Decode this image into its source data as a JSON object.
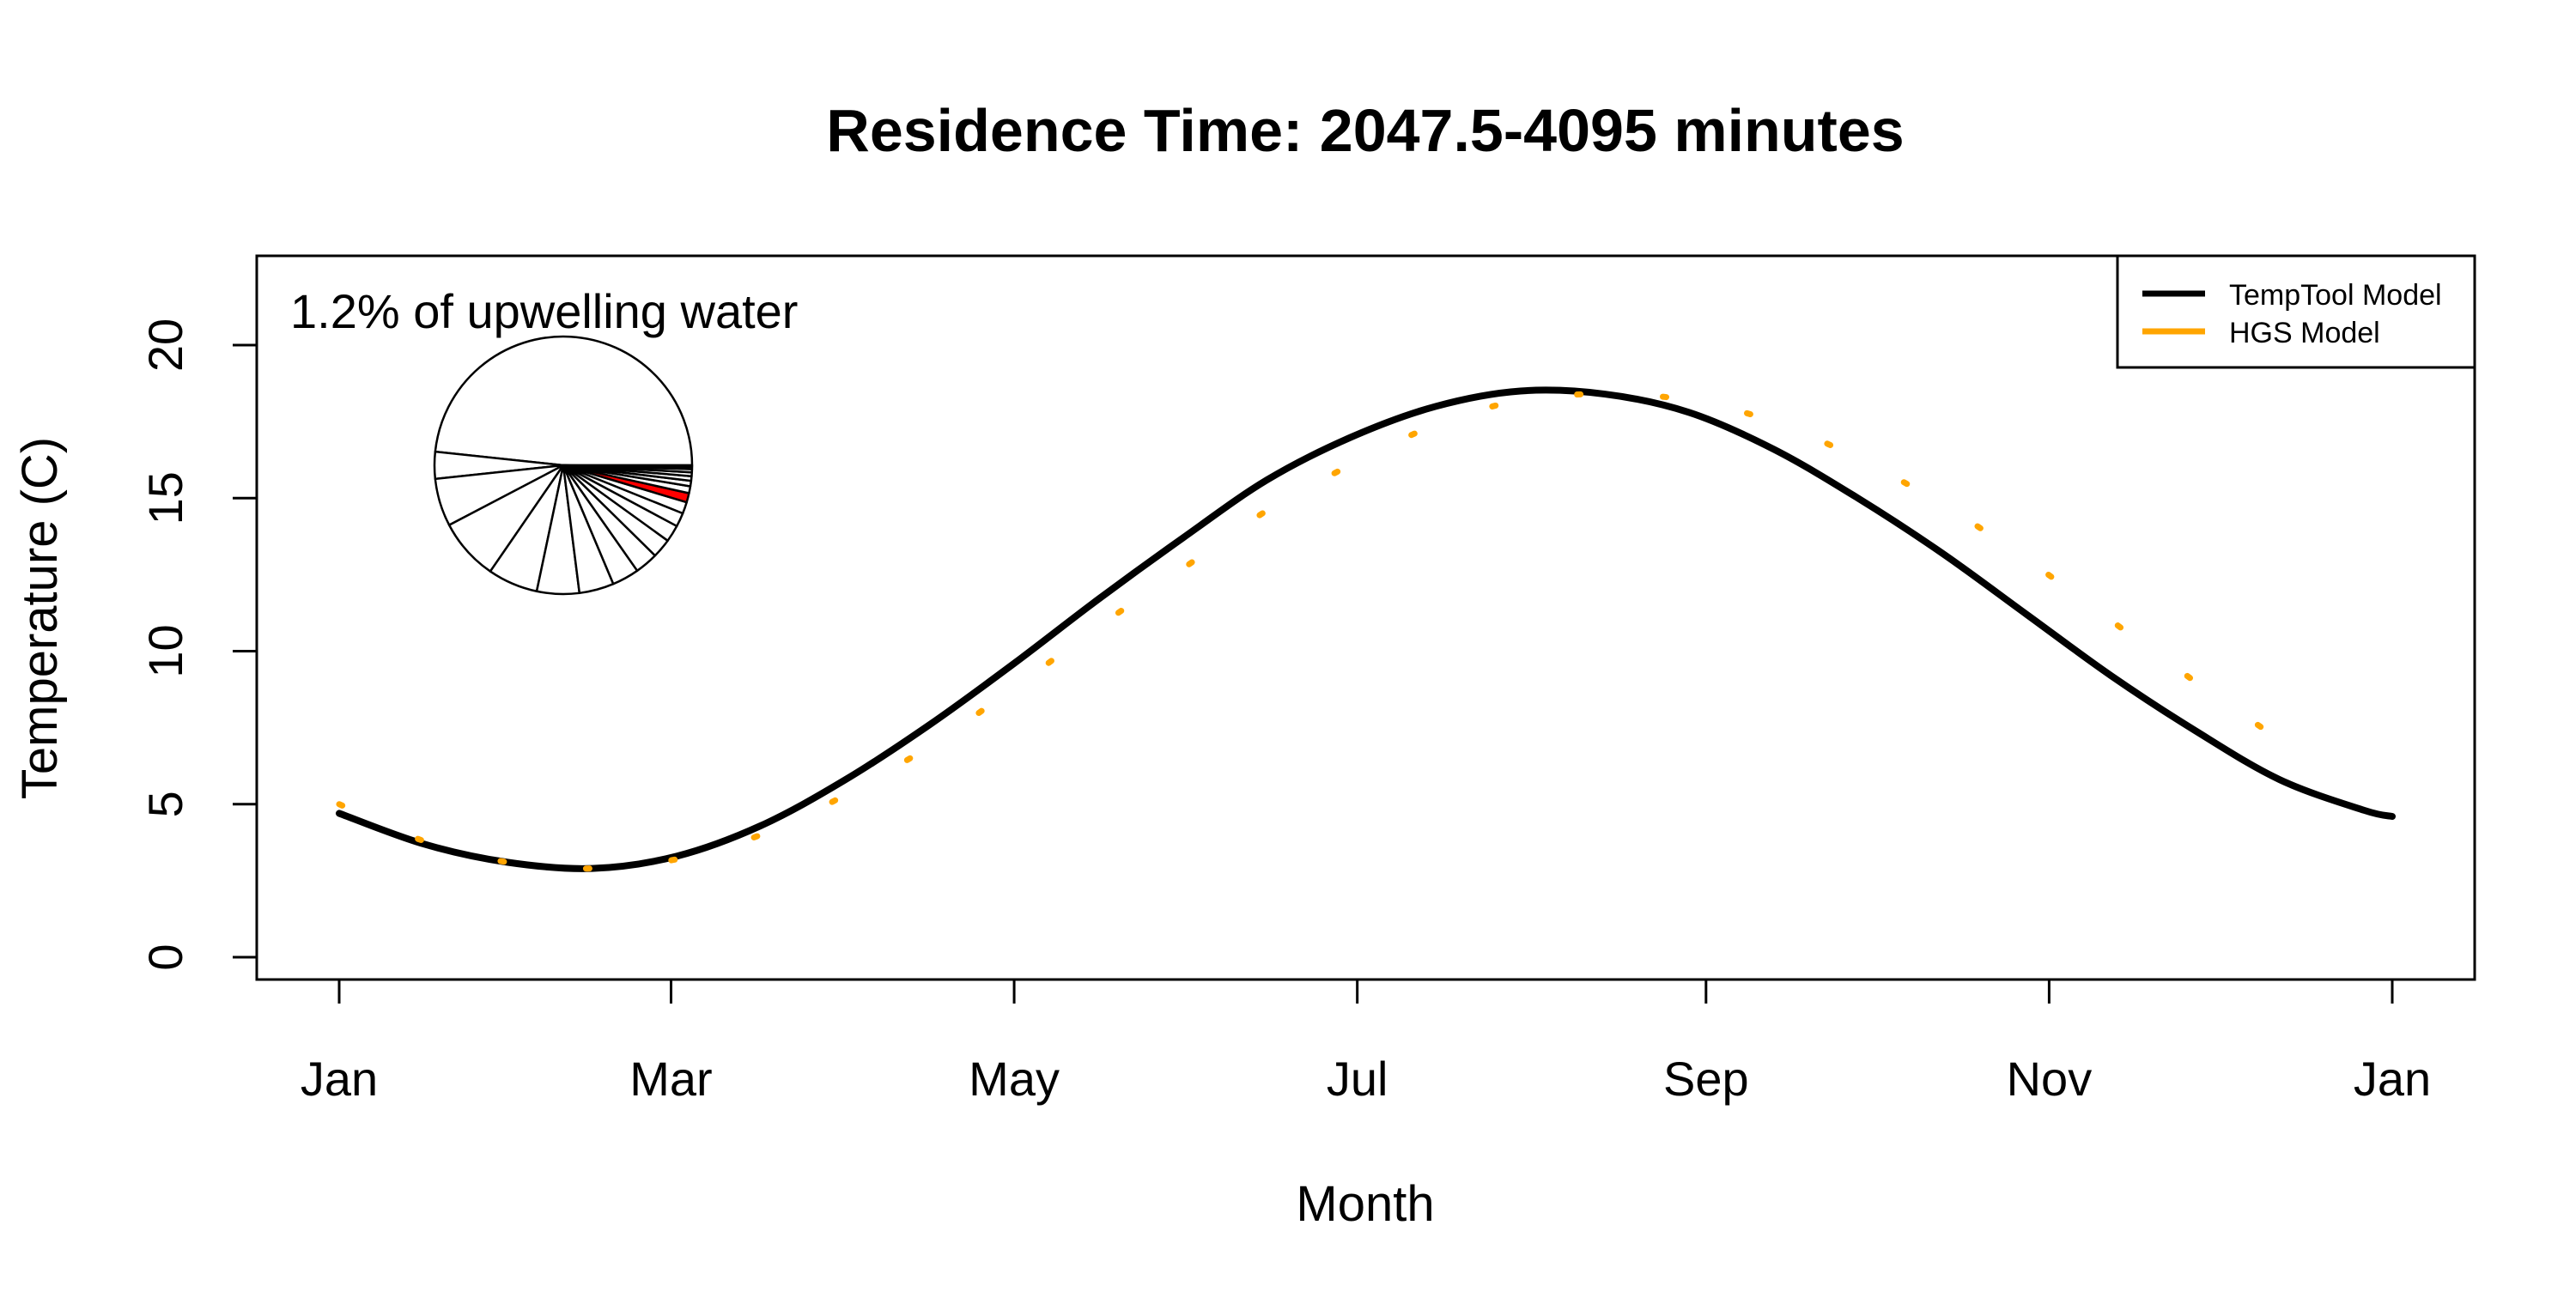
{
  "chart_data": {
    "type": "line",
    "title": "Residence Time: 2047.5-4095 minutes",
    "xlabel": "Month",
    "ylabel": "Temperature (C)",
    "x_ticks": [
      "Jan",
      "Mar",
      "May",
      "Jul",
      "Sep",
      "Nov",
      "Jan"
    ],
    "x_tick_days": [
      1,
      60,
      121,
      182,
      244,
      305,
      366
    ],
    "xlim": [
      1,
      366
    ],
    "y_ticks": [
      0,
      5,
      10,
      15,
      20
    ],
    "ylim": [
      0,
      20
    ],
    "grid": false,
    "legend_position": "top-right",
    "annotation": "1.2% of upwelling water",
    "colors": {
      "temptool": "#000000",
      "hgs": "#FFA500",
      "highlight": "#FF0000"
    },
    "series": [
      {
        "name": "TempTool Model",
        "style": "solid",
        "x": [
          1,
          16,
          31,
          46,
          61,
          76,
          91,
          106,
          121,
          136,
          151,
          166,
          181,
          196,
          211,
          226,
          241,
          256,
          271,
          286,
          301,
          316,
          331,
          346,
          361,
          366
        ],
        "y": [
          4.7,
          3.7,
          3.1,
          2.9,
          3.3,
          4.3,
          5.8,
          7.6,
          9.6,
          11.7,
          13.7,
          15.6,
          17.0,
          18.0,
          18.5,
          18.4,
          17.8,
          16.6,
          15.0,
          13.2,
          11.2,
          9.2,
          7.4,
          5.8,
          4.8,
          4.6
        ]
      },
      {
        "name": "HGS Model",
        "style": "dotted",
        "x": [
          1,
          16,
          31,
          46,
          61,
          76,
          91,
          106,
          121,
          136,
          151,
          166,
          181,
          196,
          211,
          226,
          241,
          256,
          271,
          286,
          301,
          316,
          331,
          346
        ],
        "y": [
          5.0,
          3.8,
          3.1,
          2.9,
          3.2,
          4.0,
          5.3,
          6.9,
          8.8,
          10.8,
          12.7,
          14.6,
          16.1,
          17.4,
          18.2,
          18.4,
          18.2,
          17.5,
          16.3,
          14.8,
          13.0,
          11.0,
          9.0,
          7.1
        ]
      }
    ],
    "inset_pie": {
      "slices": [
        50,
        3.5,
        6.2,
        8,
        6.5,
        5.5,
        4.5,
        3.5,
        3,
        2.5,
        2.2,
        1.8,
        1.5,
        1.2,
        0.9,
        0.7,
        0.6,
        0.5,
        0.4,
        0.3,
        0.2
      ],
      "highlight_index": 13
    }
  }
}
